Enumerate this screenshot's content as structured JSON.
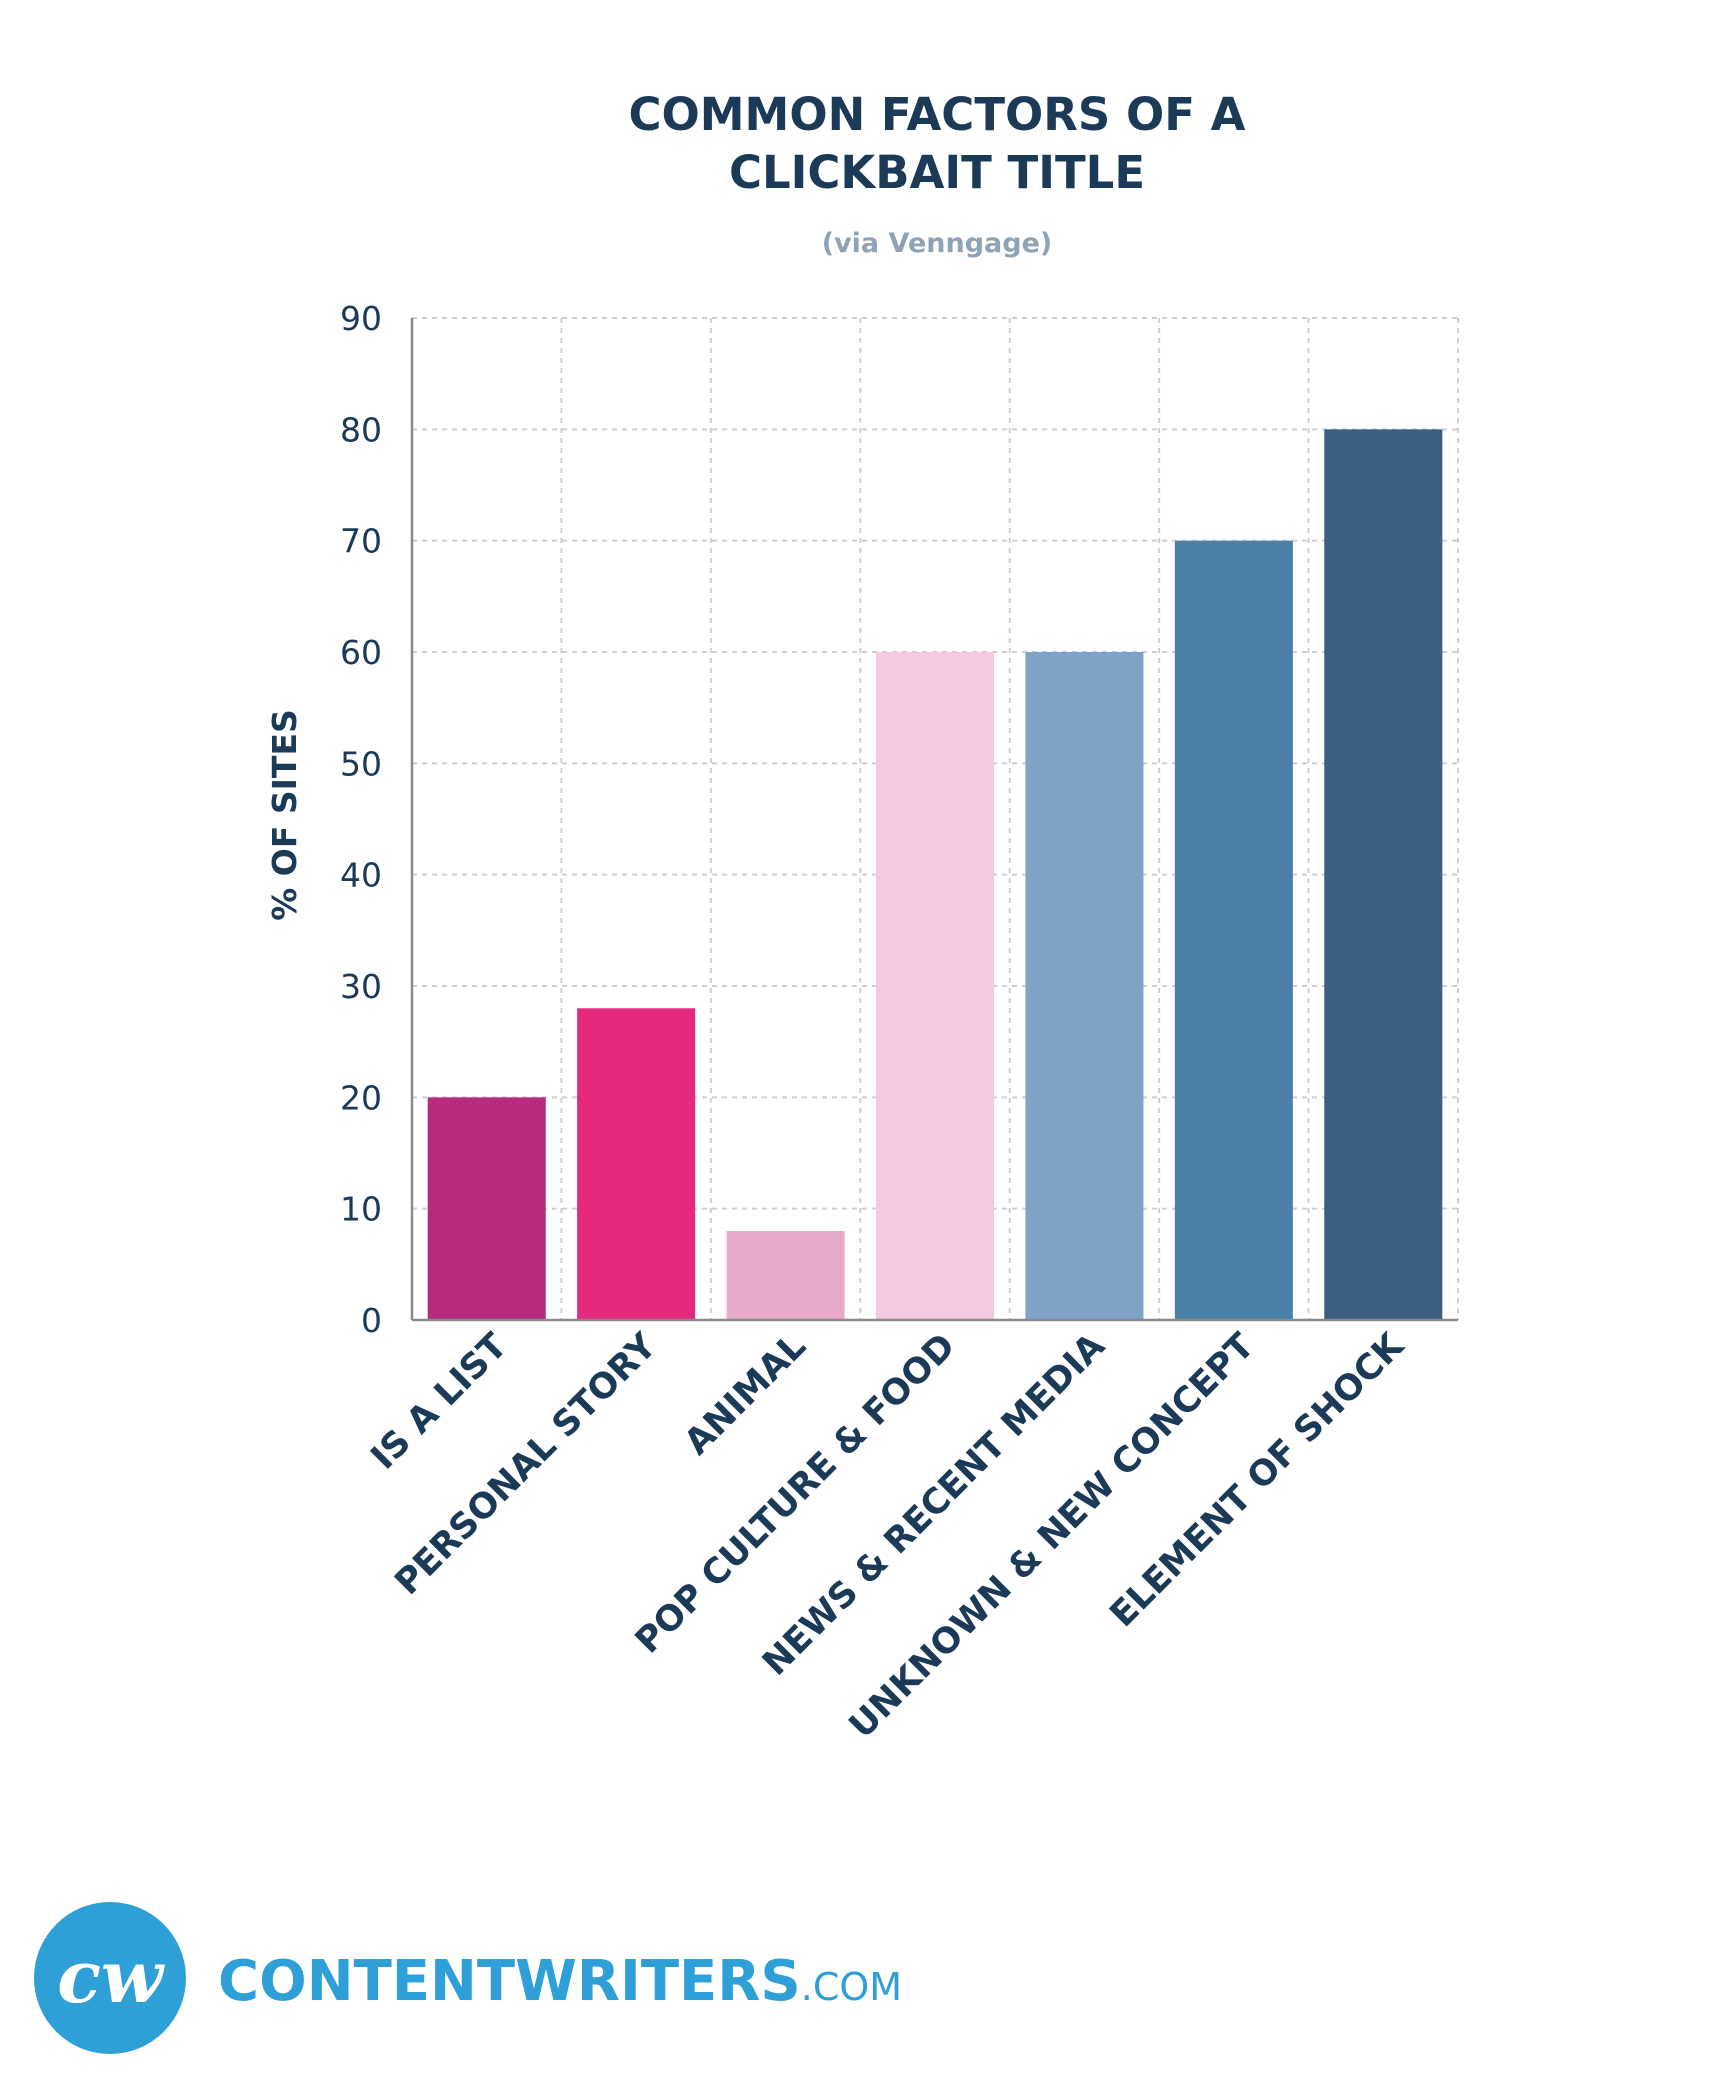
{
  "chart_data": {
    "type": "bar",
    "title_lines": [
      "COMMON FACTORS OF A",
      "CLICKBAIT TITLE"
    ],
    "subtitle": "(via Venngage)",
    "xlabel": "",
    "ylabel": "% OF SITES",
    "ylim": [
      0,
      90
    ],
    "yticks": [
      0,
      10,
      20,
      30,
      40,
      50,
      60,
      70,
      80,
      90
    ],
    "grid": true,
    "categories": [
      "IS A LIST",
      "PERSONAL STORY",
      "ANIMAL",
      "POP CULTURE & FOOD",
      "NEWS & RECENT MEDIA",
      "UNKNOWN & NEW CONCEPT",
      "ELEMENT OF SHOCK"
    ],
    "values": [
      20,
      28,
      8,
      60,
      60,
      70,
      80
    ],
    "colors": [
      "#b82a7b",
      "#e52a7e",
      "#e8aacb",
      "#f5c9e1",
      "#7ea3c7",
      "#4b81a6",
      "#3a5f80"
    ]
  },
  "brand": {
    "logo_text": "cw",
    "name": "CONTENTWRITERS",
    "suffix": ".COM",
    "color": "#2f9fd8"
  }
}
